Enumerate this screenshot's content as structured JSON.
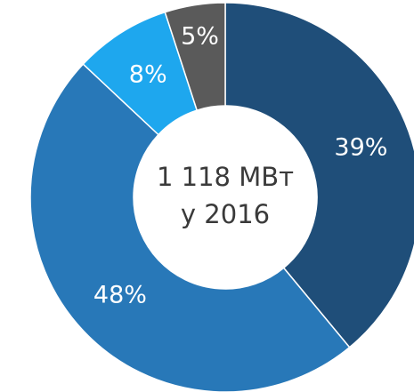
{
  "chart_data": {
    "type": "donut",
    "values": [
      39,
      48,
      8,
      5
    ],
    "value_labels": [
      "39%",
      "48%",
      "8%",
      "5%"
    ],
    "colors": [
      "#1f4e79",
      "#2878b8",
      "#1ea7ee",
      "#5a5a5a"
    ],
    "center_text": [
      "1 118 МВт",
      "у 2016"
    ]
  }
}
